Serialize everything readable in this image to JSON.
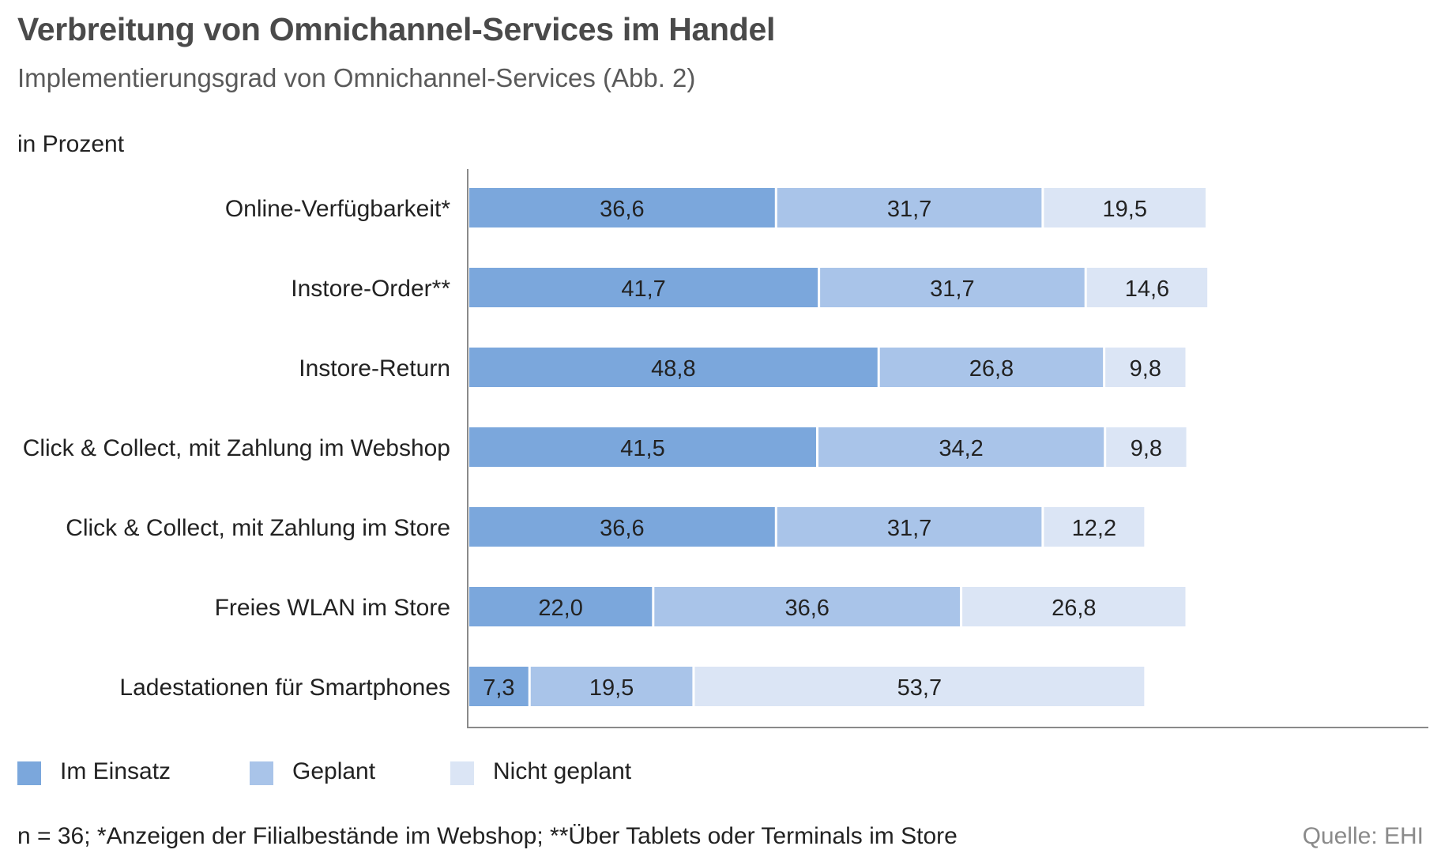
{
  "title": "Verbreitung von Omnichannel-Services im Handel",
  "subtitle": "Implementierungsgrad von Omnichannel-Services  (Abb. 2)",
  "unit_label": "in Prozent",
  "footnote": "n = 36; *Anzeigen der Filialbestände im Webshop; **Über Tablets oder Terminals im Store",
  "source": "Quelle: EHI",
  "legend": [
    {
      "label": "Im Einsatz",
      "color": "#7ba7dc"
    },
    {
      "label": "Geplant",
      "color": "#a9c4e9"
    },
    {
      "label": "Nicht geplant",
      "color": "#dbe5f5"
    }
  ],
  "chart_data": {
    "type": "bar",
    "orientation": "horizontal",
    "stacked": true,
    "unit": "in Prozent",
    "xlim": [
      0,
      100
    ],
    "grid": false,
    "legend_position": "bottom-left",
    "categories": [
      "Online-Verfügbarkeit*",
      "Instore-Order**",
      "Instore-Return",
      "Click & Collect, mit Zahlung im Webshop",
      "Click & Collect, mit Zahlung im Store",
      "Freies WLAN im Store",
      "Ladestationen für Smartphones"
    ],
    "series": [
      {
        "name": "Im Einsatz",
        "color": "#7ba7dc",
        "values": [
          36.6,
          41.7,
          48.8,
          41.5,
          36.6,
          22.0,
          7.3
        ],
        "labels": [
          "36,6",
          "41,7",
          "48,8",
          "41,5",
          "36,6",
          "22,0",
          "7,3"
        ]
      },
      {
        "name": "Geplant",
        "color": "#a9c4e9",
        "values": [
          31.7,
          31.7,
          26.8,
          34.2,
          31.7,
          36.6,
          19.5
        ],
        "labels": [
          "31,7",
          "31,7",
          "26,8",
          "34,2",
          "31,7",
          "36,6",
          "19,5"
        ]
      },
      {
        "name": "Nicht geplant",
        "color": "#dbe5f5",
        "values": [
          19.5,
          14.6,
          9.8,
          9.8,
          12.2,
          26.8,
          53.7
        ],
        "labels": [
          "19,5",
          "14,6",
          "9,8",
          "9,8",
          "12,2",
          "26,8",
          "53,7"
        ]
      }
    ]
  }
}
